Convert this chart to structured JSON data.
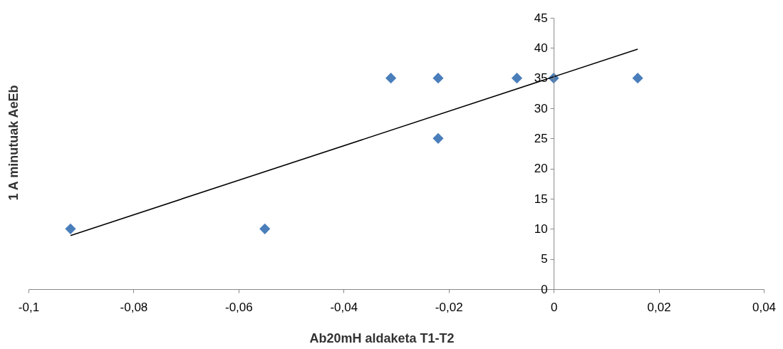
{
  "chart_data": {
    "type": "scatter",
    "xlabel": "Ab20mH aldaketa T1-T2",
    "ylabel": "1 A minutuak AeEb",
    "x": [
      -0.092,
      -0.055,
      -0.031,
      -0.022,
      -0.022,
      -0.007,
      0,
      0.016
    ],
    "series": [
      {
        "color": "#4a7ebb",
        "marker": "diamond",
        "values": [
          10,
          10,
          35,
          35,
          25,
          35,
          35,
          35
        ]
      },
      {
        "type": "line",
        "color": "#000000",
        "x": [
          -0.092,
          0.016
        ],
        "values": [
          8.9,
          39.8
        ]
      }
    ],
    "xlim": [
      -0.1,
      0.04
    ],
    "xticks": [
      {
        "value": -0.1,
        "label": "-0,1"
      },
      {
        "value": -0.08,
        "label": "-0,08"
      },
      {
        "value": -0.06,
        "label": "-0,06"
      },
      {
        "value": -0.04,
        "label": "-0,04"
      },
      {
        "value": -0.02,
        "label": "-0,02"
      },
      {
        "value": 0,
        "label": "0"
      },
      {
        "value": 0.02,
        "label": "0,02"
      },
      {
        "value": 0.04,
        "label": "0,04"
      }
    ],
    "ylim": [
      0,
      45
    ],
    "yticks": [
      0,
      5,
      10,
      15,
      20,
      25,
      30,
      35,
      40,
      45
    ],
    "grid": false,
    "legend": false
  }
}
